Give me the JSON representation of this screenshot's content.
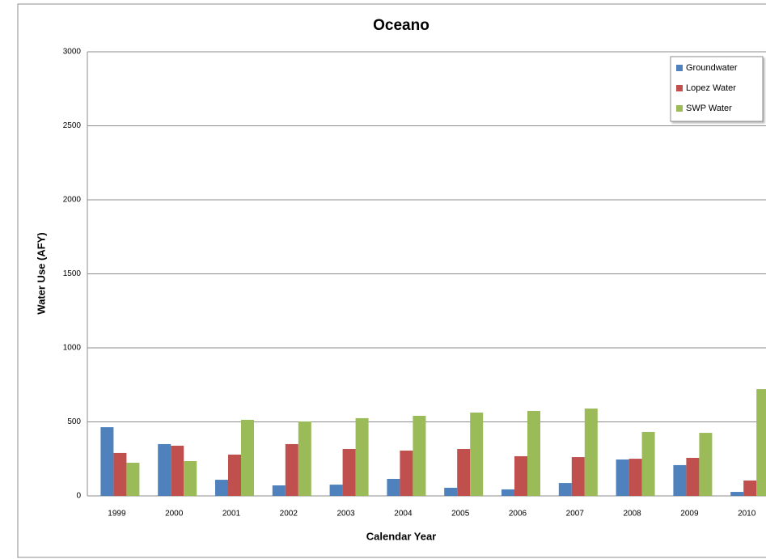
{
  "chart_data": {
    "type": "bar",
    "title": "Oceano",
    "x_label": "Calendar Year",
    "y_label": "Water Use (AFY)",
    "categories": [
      "1999",
      "2000",
      "2001",
      "2002",
      "2003",
      "2004",
      "2005",
      "2006",
      "2007",
      "2008",
      "2009",
      "2010"
    ],
    "series": [
      {
        "name": "Groundwater",
        "color": "#4f81bd",
        "values": [
          464,
          350,
          109,
          71,
          76,
          115,
          55,
          44,
          87,
          246,
          208,
          27
        ]
      },
      {
        "name": "Lopez Water",
        "color": "#c0504d",
        "values": [
          290,
          339,
          279,
          350,
          317,
          306,
          317,
          268,
          262,
          251,
          257,
          104
        ]
      },
      {
        "name": "SWP Water",
        "color": "#9bbb59",
        "values": [
          224,
          235,
          514,
          503,
          525,
          541,
          563,
          574,
          590,
          432,
          426,
          721
        ]
      }
    ],
    "ylim": [
      0,
      3000
    ],
    "yticks": [
      0,
      500,
      1000,
      1500,
      2000,
      2500,
      3000
    ],
    "grid": true,
    "legend": "top-right"
  }
}
